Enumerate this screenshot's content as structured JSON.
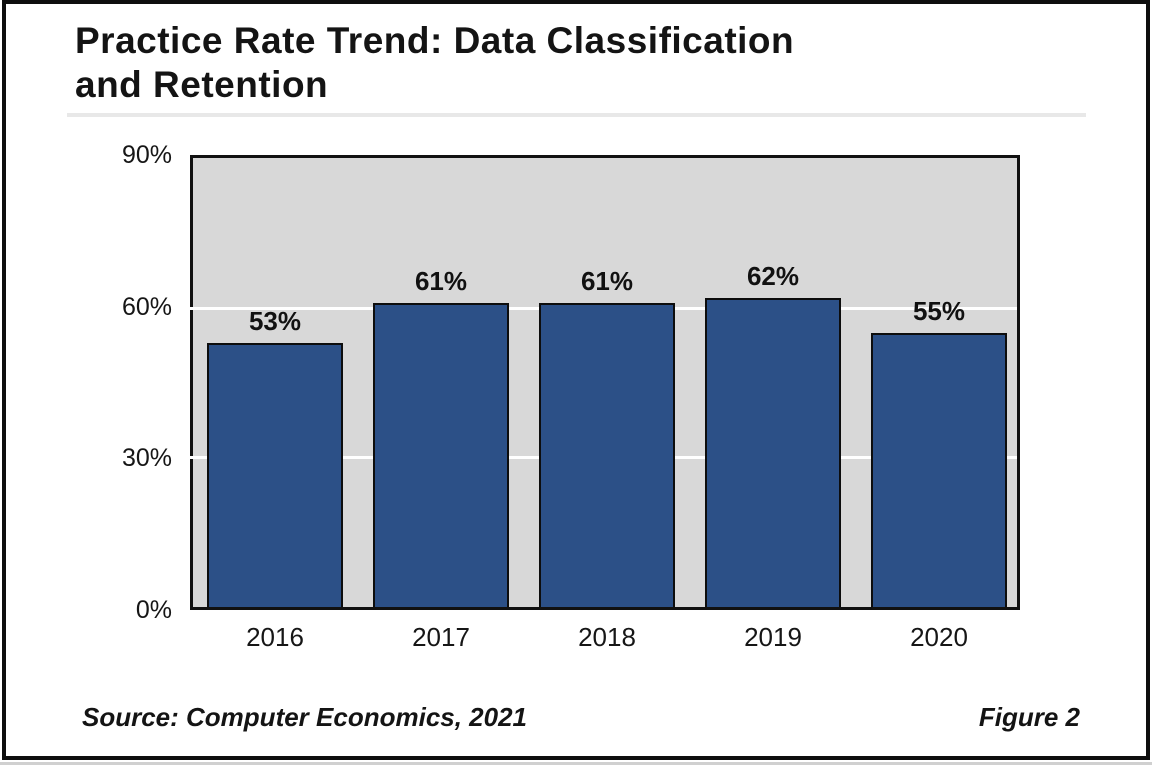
{
  "figure": {
    "title_lines": [
      "Practice Rate Trend: Data Classification",
      "and Retention"
    ],
    "source": "Source: Computer Economics, 2021",
    "figure_label": "Figure 2"
  },
  "chart_data": {
    "type": "bar",
    "title": "Practice Rate Trend: Data Classification and Retention",
    "categories": [
      "2016",
      "2017",
      "2018",
      "2019",
      "2020"
    ],
    "values": [
      53,
      61,
      61,
      62,
      55
    ],
    "value_labels": [
      "53%",
      "61%",
      "61%",
      "62%",
      "55%"
    ],
    "xlabel": "",
    "ylabel": "",
    "ylim": [
      0,
      90
    ],
    "yticks": [
      0,
      30,
      60,
      90
    ],
    "ytick_labels": [
      "0%",
      "30%",
      "60%",
      "90%"
    ],
    "gridlines_at": [
      30,
      60
    ],
    "legend": "none",
    "bar_color": "#2c5087",
    "bar_border_color": "#0d0d0d",
    "plot_bg_color": "#d8d8d8",
    "gridline_color": "#ffffff"
  }
}
